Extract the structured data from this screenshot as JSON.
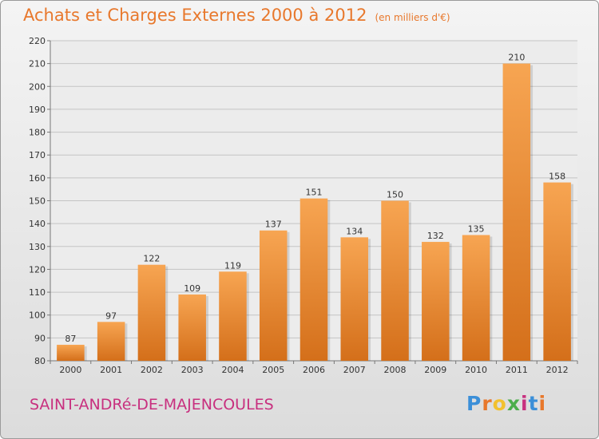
{
  "header": {
    "title": "Achats et Charges Externes 2000 à 2012",
    "subtitle": "(en milliers d'€)"
  },
  "footer": {
    "commune": "SAINT-ANDRé-DE-MAJENCOULES",
    "logo_text": "Proxiti",
    "logo_colors": [
      "#3b8fd8",
      "#e8782c",
      "#f2c12e",
      "#4cae4c",
      "#c8307f",
      "#3b8fd8",
      "#e8782c"
    ]
  },
  "chart_data": {
    "type": "bar",
    "title": "Achats et Charges Externes 2000 à 2012",
    "subtitle": "(en milliers d'€)",
    "categories": [
      "2000",
      "2001",
      "2002",
      "2003",
      "2004",
      "2005",
      "2006",
      "2007",
      "2008",
      "2009",
      "2010",
      "2011",
      "2012"
    ],
    "values": [
      87,
      97,
      122,
      109,
      119,
      137,
      151,
      134,
      150,
      132,
      135,
      210,
      158
    ],
    "ylim": [
      80,
      220
    ],
    "yticks": [
      80,
      90,
      100,
      110,
      120,
      130,
      140,
      150,
      160,
      170,
      180,
      190,
      200,
      210,
      220
    ],
    "xlabel": "",
    "ylabel": "",
    "grid": true,
    "legend": "none",
    "bar_color_top": "#f7a552",
    "bar_color_bottom": "#d46f1a"
  }
}
